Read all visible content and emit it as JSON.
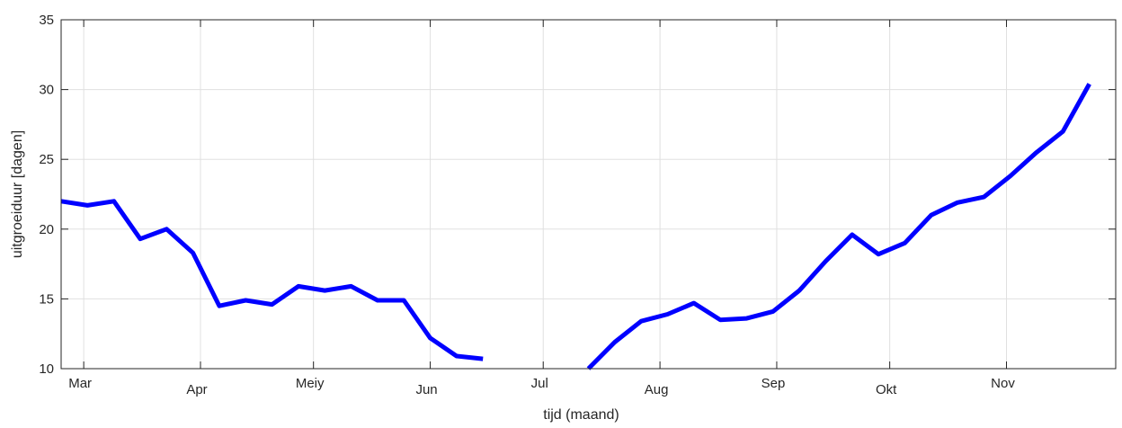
{
  "chart_data": {
    "type": "line",
    "title": "",
    "xlabel": "tijd (maand)",
    "ylabel": "uitgroeiduur [dagen]",
    "ylim": [
      10,
      35
    ],
    "yticks": [
      10,
      15,
      20,
      25,
      30,
      35
    ],
    "xlim": [
      "2024-02-24",
      "2024-11-30"
    ],
    "xticks": [
      {
        "label": "Mar",
        "date": "2024-03-01"
      },
      {
        "label": "Apr",
        "date": "2024-04-01"
      },
      {
        "label": "Meiy",
        "date": "2024-05-01"
      },
      {
        "label": "Jun",
        "date": "2024-06-01"
      },
      {
        "label": "Jul",
        "date": "2024-07-01"
      },
      {
        "label": "Aug",
        "date": "2024-08-01"
      },
      {
        "label": "Sep",
        "date": "2024-09-01"
      },
      {
        "label": "Okt",
        "date": "2024-10-01"
      },
      {
        "label": "Nov",
        "date": "2024-11-01"
      }
    ],
    "grid": true,
    "line_color": "#0000ff",
    "series": [
      {
        "segments": [
          [
            {
              "x": "2024-02-24",
              "y": 22.0
            },
            {
              "x": "2024-03-02",
              "y": 21.7
            },
            {
              "x": "2024-03-09",
              "y": 22.0
            },
            {
              "x": "2024-03-16",
              "y": 19.3
            },
            {
              "x": "2024-03-23",
              "y": 20.0
            },
            {
              "x": "2024-03-30",
              "y": 18.3
            },
            {
              "x": "2024-04-06",
              "y": 14.5
            },
            {
              "x": "2024-04-13",
              "y": 14.9
            },
            {
              "x": "2024-04-20",
              "y": 14.6
            },
            {
              "x": "2024-04-27",
              "y": 15.9
            },
            {
              "x": "2024-05-04",
              "y": 15.6
            },
            {
              "x": "2024-05-11",
              "y": 15.9
            },
            {
              "x": "2024-05-18",
              "y": 14.9
            },
            {
              "x": "2024-05-25",
              "y": 14.9
            },
            {
              "x": "2024-06-01",
              "y": 12.2
            },
            {
              "x": "2024-06-08",
              "y": 10.9
            },
            {
              "x": "2024-06-15",
              "y": 10.7
            }
          ],
          [
            {
              "x": "2024-07-13",
              "y": 10.0
            },
            {
              "x": "2024-07-20",
              "y": 11.9
            },
            {
              "x": "2024-07-27",
              "y": 13.4
            },
            {
              "x": "2024-08-03",
              "y": 13.9
            },
            {
              "x": "2024-08-10",
              "y": 14.7
            },
            {
              "x": "2024-08-17",
              "y": 13.5
            },
            {
              "x": "2024-08-24",
              "y": 13.6
            },
            {
              "x": "2024-08-31",
              "y": 14.1
            },
            {
              "x": "2024-09-07",
              "y": 15.6
            },
            {
              "x": "2024-09-14",
              "y": 17.7
            },
            {
              "x": "2024-09-21",
              "y": 19.6
            },
            {
              "x": "2024-09-28",
              "y": 18.2
            },
            {
              "x": "2024-10-05",
              "y": 19.0
            },
            {
              "x": "2024-10-12",
              "y": 21.0
            },
            {
              "x": "2024-10-19",
              "y": 21.9
            },
            {
              "x": "2024-10-26",
              "y": 22.3
            },
            {
              "x": "2024-11-02",
              "y": 23.8
            },
            {
              "x": "2024-11-09",
              "y": 25.5
            },
            {
              "x": "2024-11-16",
              "y": 27.0
            },
            {
              "x": "2024-11-23",
              "y": 30.4
            }
          ]
        ]
      }
    ]
  }
}
